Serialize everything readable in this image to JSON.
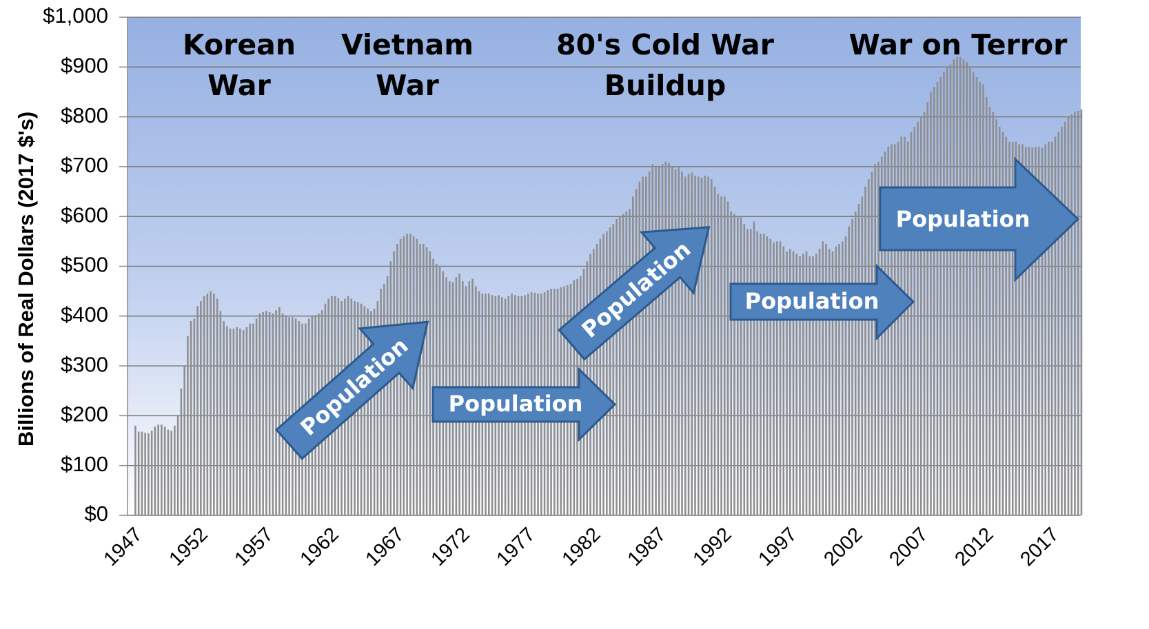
{
  "chart_data": {
    "type": "bar",
    "ylabel": "Billions of Real Dollars (2017 $'s)",
    "ylim": [
      0,
      1000
    ],
    "yticks": [
      {
        "value": 0,
        "label": "$0"
      },
      {
        "value": 100,
        "label": "$100"
      },
      {
        "value": 200,
        "label": "$200"
      },
      {
        "value": 300,
        "label": "$300"
      },
      {
        "value": 400,
        "label": "$400"
      },
      {
        "value": 500,
        "label": "$500"
      },
      {
        "value": 600,
        "label": "$600"
      },
      {
        "value": 700,
        "label": "$700"
      },
      {
        "value": 800,
        "label": "$800"
      },
      {
        "value": 900,
        "label": "$900"
      },
      {
        "value": 1000,
        "label": "$1,000"
      }
    ],
    "xlim": [
      1946.4,
      2019.2
    ],
    "xticks": [
      1947,
      1952,
      1957,
      1962,
      1967,
      1972,
      1977,
      1982,
      1987,
      1992,
      1997,
      2002,
      2007,
      2012,
      2017
    ],
    "grid": true,
    "color": "#8e8e8e",
    "annotations": [
      {
        "lines": [
          "Korean",
          "War"
        ]
      },
      {
        "lines": [
          "Vietnam",
          "War"
        ]
      },
      {
        "lines": [
          "80's Cold War",
          "Buildup"
        ]
      },
      {
        "lines": [
          "War on Terror"
        ]
      }
    ],
    "arrow_labels": [
      "Population",
      "Population",
      "Population",
      "Population",
      "Population"
    ],
    "x": [
      1947,
      1947.25,
      1947.5,
      1947.75,
      1948,
      1948.25,
      1948.5,
      1948.75,
      1949,
      1949.25,
      1949.5,
      1949.75,
      1950,
      1950.25,
      1950.5,
      1950.75,
      1951,
      1951.25,
      1951.5,
      1951.75,
      1952,
      1952.25,
      1952.5,
      1952.75,
      1953,
      1953.25,
      1953.5,
      1953.75,
      1954,
      1954.25,
      1954.5,
      1954.75,
      1955,
      1955.25,
      1955.5,
      1955.75,
      1956,
      1956.25,
      1956.5,
      1956.75,
      1957,
      1957.25,
      1957.5,
      1957.75,
      1958,
      1958.25,
      1958.5,
      1958.75,
      1959,
      1959.25,
      1959.5,
      1959.75,
      1960,
      1960.25,
      1960.5,
      1960.75,
      1961,
      1961.25,
      1961.5,
      1961.75,
      1962,
      1962.25,
      1962.5,
      1962.75,
      1963,
      1963.25,
      1963.5,
      1963.75,
      1964,
      1964.25,
      1964.5,
      1964.75,
      1965,
      1965.25,
      1965.5,
      1965.75,
      1966,
      1966.25,
      1966.5,
      1966.75,
      1967,
      1967.25,
      1967.5,
      1967.75,
      1968,
      1968.25,
      1968.5,
      1968.75,
      1969,
      1969.25,
      1969.5,
      1969.75,
      1970,
      1970.25,
      1970.5,
      1970.75,
      1971,
      1971.25,
      1971.5,
      1971.75,
      1972,
      1972.25,
      1972.5,
      1972.75,
      1973,
      1973.25,
      1973.5,
      1973.75,
      1974,
      1974.25,
      1974.5,
      1974.75,
      1975,
      1975.25,
      1975.5,
      1975.75,
      1976,
      1976.25,
      1976.5,
      1976.75,
      1977,
      1977.25,
      1977.5,
      1977.75,
      1978,
      1978.25,
      1978.5,
      1978.75,
      1979,
      1979.25,
      1979.5,
      1979.75,
      1980,
      1980.25,
      1980.5,
      1980.75,
      1981,
      1981.25,
      1981.5,
      1981.75,
      1982,
      1982.25,
      1982.5,
      1982.75,
      1983,
      1983.25,
      1983.5,
      1983.75,
      1984,
      1984.25,
      1984.5,
      1984.75,
      1985,
      1985.25,
      1985.5,
      1985.75,
      1986,
      1986.25,
      1986.5,
      1986.75,
      1987,
      1987.25,
      1987.5,
      1987.75,
      1988,
      1988.25,
      1988.5,
      1988.75,
      1989,
      1989.25,
      1989.5,
      1989.75,
      1990,
      1990.25,
      1990.5,
      1990.75,
      1991,
      1991.25,
      1991.5,
      1991.75,
      1992,
      1992.25,
      1992.5,
      1992.75,
      1993,
      1993.25,
      1993.5,
      1993.75,
      1994,
      1994.25,
      1994.5,
      1994.75,
      1995,
      1995.25,
      1995.5,
      1995.75,
      1996,
      1996.25,
      1996.5,
      1996.75,
      1997,
      1997.25,
      1997.5,
      1997.75,
      1998,
      1998.25,
      1998.5,
      1998.75,
      1999,
      1999.25,
      1999.5,
      1999.75,
      2000,
      2000.25,
      2000.5,
      2000.75,
      2001,
      2001.25,
      2001.5,
      2001.75,
      2002,
      2002.25,
      2002.5,
      2002.75,
      2003,
      2003.25,
      2003.5,
      2003.75,
      2004,
      2004.25,
      2004.5,
      2004.75,
      2005,
      2005.25,
      2005.5,
      2005.75,
      2006,
      2006.25,
      2006.5,
      2006.75,
      2007,
      2007.25,
      2007.5,
      2007.75,
      2008,
      2008.25,
      2008.5,
      2008.75,
      2009,
      2009.25,
      2009.5,
      2009.75,
      2010,
      2010.25,
      2010.5,
      2010.75,
      2011,
      2011.25,
      2011.5,
      2011.75,
      2012,
      2012.25,
      2012.5,
      2012.75,
      2013,
      2013.25,
      2013.5,
      2013.75,
      2014,
      2014.25,
      2014.5,
      2014.75,
      2015,
      2015.25,
      2015.5,
      2015.75,
      2016,
      2016.25,
      2016.5,
      2016.75,
      2017,
      2017.25,
      2017.5,
      2017.75,
      2018,
      2018.25,
      2018.5,
      2018.75,
      2019,
      2019.25
    ],
    "values": [
      180,
      168,
      168,
      166,
      165,
      170,
      178,
      182,
      182,
      178,
      172,
      170,
      180,
      200,
      255,
      300,
      360,
      390,
      395,
      420,
      430,
      440,
      445,
      450,
      445,
      435,
      410,
      390,
      380,
      375,
      375,
      378,
      375,
      372,
      378,
      385,
      385,
      395,
      405,
      408,
      410,
      408,
      405,
      412,
      418,
      405,
      400,
      398,
      398,
      395,
      390,
      385,
      385,
      395,
      400,
      402,
      405,
      412,
      425,
      435,
      440,
      440,
      436,
      430,
      435,
      440,
      435,
      430,
      428,
      425,
      420,
      415,
      410,
      415,
      430,
      455,
      465,
      480,
      510,
      530,
      545,
      555,
      560,
      565,
      565,
      560,
      555,
      545,
      545,
      538,
      530,
      515,
      505,
      500,
      490,
      478,
      470,
      468,
      478,
      485,
      470,
      460,
      470,
      475,
      460,
      450,
      445,
      445,
      445,
      442,
      440,
      442,
      438,
      435,
      440,
      445,
      442,
      440,
      440,
      442,
      445,
      448,
      447,
      445,
      445,
      448,
      452,
      455,
      455,
      455,
      458,
      460,
      462,
      465,
      472,
      475,
      480,
      495,
      510,
      525,
      535,
      545,
      555,
      565,
      570,
      578,
      585,
      595,
      600,
      605,
      610,
      615,
      640,
      655,
      670,
      680,
      680,
      690,
      705,
      700,
      700,
      705,
      710,
      708,
      700,
      695,
      700,
      690,
      680,
      685,
      688,
      682,
      680,
      678,
      682,
      680,
      675,
      660,
      645,
      640,
      640,
      630,
      610,
      605,
      600,
      600,
      585,
      575,
      575,
      590,
      570,
      565,
      565,
      560,
      555,
      548,
      550,
      550,
      540,
      530,
      535,
      530,
      525,
      520,
      525,
      530,
      520,
      520,
      525,
      535,
      550,
      545,
      535,
      530,
      540,
      545,
      550,
      560,
      580,
      595,
      610,
      625,
      640,
      660,
      675,
      690,
      705,
      710,
      720,
      730,
      740,
      745,
      745,
      750,
      760,
      760,
      750,
      770,
      780,
      790,
      800,
      810,
      830,
      850,
      860,
      870,
      880,
      890,
      900,
      905,
      915,
      920,
      920,
      915,
      910,
      900,
      890,
      880,
      870,
      865,
      840,
      820,
      810,
      795,
      780,
      770,
      760,
      750,
      750,
      750,
      745,
      745,
      740,
      740,
      738,
      740,
      740,
      738,
      745,
      750,
      750,
      760,
      770,
      780,
      790,
      800,
      805,
      810,
      812,
      815
    ]
  }
}
